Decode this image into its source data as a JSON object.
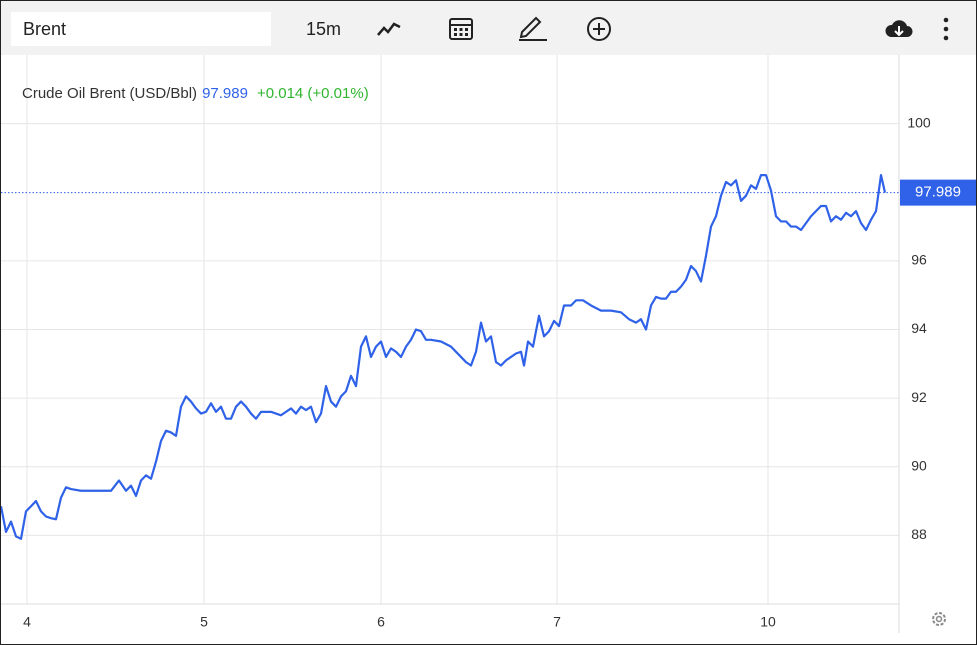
{
  "toolbar": {
    "symbol": "Brent",
    "interval": "15m"
  },
  "chart_data": {
    "type": "line",
    "change": "+0.014 (+0.01%)",
    "last_value": 97.989,
    "x": [
      0,
      5,
      10,
      15,
      20,
      25,
      30,
      35,
      40,
      45,
      50,
      55,
      60,
      65,
      70,
      80,
      90,
      100,
      110,
      118,
      125,
      130,
      135,
      140,
      145,
      150,
      155,
      160,
      165,
      170,
      175,
      180,
      185,
      190,
      195,
      200,
      205,
      210,
      215,
      220,
      225,
      230,
      235,
      240,
      245,
      250,
      255,
      260,
      270,
      280,
      290,
      295,
      300,
      305,
      310,
      315,
      320,
      325,
      330,
      335,
      340,
      345,
      350,
      355,
      360,
      365,
      370,
      375,
      380,
      385,
      390,
      395,
      400,
      405,
      410,
      415,
      420,
      425,
      430,
      440,
      450,
      455,
      460,
      465,
      470,
      475,
      480,
      485,
      490,
      495,
      500,
      505,
      510,
      515,
      520,
      523,
      527,
      532,
      538,
      543,
      548,
      553,
      558,
      563,
      570,
      575,
      582,
      590,
      600,
      610,
      620,
      628,
      635,
      640,
      645,
      650,
      655,
      660,
      665,
      670,
      675,
      680,
      685,
      690,
      695,
      700,
      705,
      710,
      715,
      720,
      725,
      730,
      735,
      740,
      745,
      750,
      755,
      760,
      765,
      770,
      775,
      780,
      785,
      790,
      795,
      800,
      805,
      810,
      815,
      820,
      825,
      830,
      835,
      840,
      845,
      850,
      855,
      860,
      865,
      870,
      875,
      880,
      884
    ],
    "series": [
      {
        "name": "Crude Oil Brent (USD/Bbl)",
        "color": "#2f62e8",
        "values": [
          88.85,
          88.1,
          88.4,
          87.97,
          87.9,
          88.7,
          88.85,
          89.0,
          88.7,
          88.55,
          88.5,
          88.47,
          89.1,
          89.4,
          89.35,
          89.3,
          89.3,
          89.3,
          89.3,
          89.6,
          89.3,
          89.45,
          89.15,
          89.6,
          89.75,
          89.65,
          90.15,
          90.75,
          91.05,
          91.0,
          90.9,
          91.75,
          92.05,
          91.9,
          91.7,
          91.55,
          91.6,
          91.85,
          91.6,
          91.75,
          91.4,
          91.4,
          91.75,
          91.9,
          91.75,
          91.55,
          91.4,
          91.6,
          91.6,
          91.5,
          91.7,
          91.55,
          91.75,
          91.65,
          91.75,
          91.3,
          91.55,
          92.35,
          91.9,
          91.75,
          92.05,
          92.2,
          92.65,
          92.35,
          93.5,
          93.8,
          93.2,
          93.5,
          93.65,
          93.2,
          93.45,
          93.35,
          93.2,
          93.5,
          93.7,
          94.0,
          93.95,
          93.7,
          93.7,
          93.65,
          93.5,
          93.35,
          93.2,
          93.05,
          92.95,
          93.35,
          94.2,
          93.65,
          93.8,
          93.05,
          92.95,
          93.1,
          93.2,
          93.3,
          93.35,
          92.95,
          93.65,
          93.5,
          94.4,
          93.8,
          93.95,
          94.25,
          94.1,
          94.7,
          94.7,
          94.85,
          94.85,
          94.7,
          94.55,
          94.55,
          94.5,
          94.3,
          94.2,
          94.3,
          94.0,
          94.7,
          94.95,
          94.9,
          94.9,
          95.1,
          95.1,
          95.25,
          95.45,
          95.85,
          95.7,
          95.4,
          96.15,
          97.0,
          97.3,
          97.9,
          98.3,
          98.2,
          98.35,
          97.75,
          97.9,
          98.2,
          98.1,
          98.5,
          98.5,
          98.05,
          97.3,
          97.15,
          97.15,
          97.0,
          97.0,
          96.9,
          97.1,
          97.3,
          97.45,
          97.6,
          97.6,
          97.15,
          97.3,
          97.2,
          97.4,
          97.3,
          97.45,
          97.1,
          96.9,
          97.2,
          97.45,
          98.5,
          97.989
        ]
      }
    ],
    "xlim": [
      0,
      898
    ],
    "xticks": [
      {
        "value": 26,
        "label": "4"
      },
      {
        "value": 203,
        "label": "5"
      },
      {
        "value": 380,
        "label": "6"
      },
      {
        "value": 556,
        "label": "7"
      },
      {
        "value": 767,
        "label": "10"
      }
    ],
    "ylim": [
      86,
      102
    ],
    "yticks": [
      88,
      90,
      92,
      94,
      96,
      100
    ],
    "grid": true
  }
}
